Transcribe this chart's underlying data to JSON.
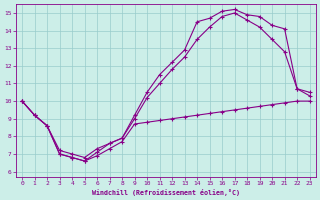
{
  "xlabel": "Windchill (Refroidissement éolien,°C)",
  "xlim": [
    -0.5,
    23.5
  ],
  "ylim": [
    5.7,
    15.5
  ],
  "xticks": [
    0,
    1,
    2,
    3,
    4,
    5,
    6,
    7,
    8,
    9,
    10,
    11,
    12,
    13,
    14,
    15,
    16,
    17,
    18,
    19,
    20,
    21,
    22,
    23
  ],
  "yticks": [
    6,
    7,
    8,
    9,
    10,
    11,
    12,
    13,
    14,
    15
  ],
  "bg_color": "#cceee8",
  "line_color": "#880088",
  "grid_color": "#99cccc",
  "line1_x": [
    0,
    1,
    2,
    3,
    4,
    5,
    6,
    7,
    8,
    9,
    10,
    11,
    12,
    13,
    14,
    15,
    16,
    17,
    18,
    19,
    20,
    21,
    22,
    23
  ],
  "line1_y": [
    10.0,
    9.2,
    8.6,
    7.0,
    6.8,
    6.6,
    7.1,
    7.6,
    7.9,
    9.2,
    10.5,
    11.5,
    12.2,
    12.9,
    14.5,
    14.7,
    15.1,
    15.2,
    14.9,
    14.8,
    14.3,
    14.1,
    10.7,
    10.5
  ],
  "line2_x": [
    0,
    1,
    2,
    3,
    4,
    5,
    6,
    7,
    8,
    9,
    10,
    11,
    12,
    13,
    14,
    15,
    16,
    17,
    18,
    19,
    20,
    21,
    22,
    23
  ],
  "line2_y": [
    10.0,
    9.2,
    8.6,
    7.2,
    7.0,
    6.8,
    7.3,
    7.6,
    7.9,
    9.0,
    10.2,
    11.0,
    11.8,
    12.5,
    13.5,
    14.2,
    14.8,
    15.0,
    14.6,
    14.2,
    13.5,
    12.8,
    10.7,
    10.3
  ],
  "line3_x": [
    0,
    1,
    2,
    3,
    4,
    5,
    6,
    7,
    8,
    9,
    10,
    11,
    12,
    13,
    14,
    15,
    16,
    17,
    18,
    19,
    20,
    21,
    22,
    23
  ],
  "line3_y": [
    10.0,
    9.2,
    8.6,
    7.0,
    6.8,
    6.6,
    6.9,
    7.3,
    7.7,
    8.7,
    8.8,
    8.9,
    9.0,
    9.1,
    9.2,
    9.3,
    9.4,
    9.5,
    9.6,
    9.7,
    9.8,
    9.9,
    10.0,
    10.0
  ]
}
